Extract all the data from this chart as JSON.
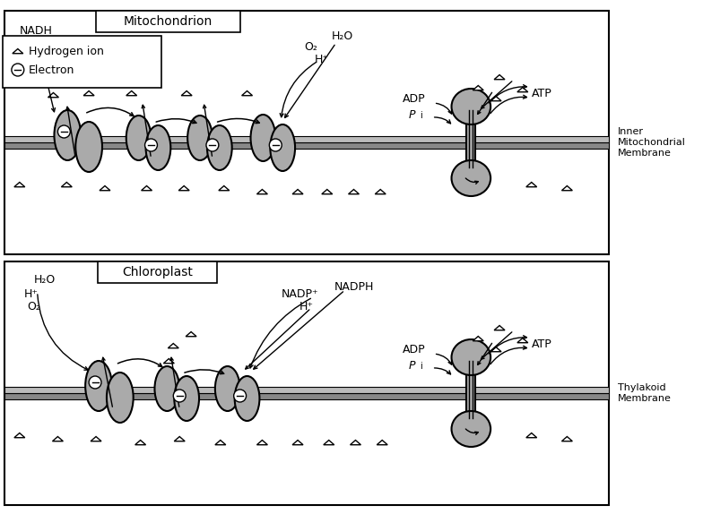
{
  "title": "",
  "bg_color": "#ffffff",
  "membrane_color": "#aaaaaa",
  "protein_fill": "#aaaaaa",
  "protein_edge": "#000000",
  "arrow_color": "#000000",
  "text_color": "#000000",
  "box_color": "#ffffff",
  "mito_label": "Mitochondrion",
  "chloro_label": "Chloroplast",
  "inner_mem_label": "Inner\nMitochondrial\nMembrane",
  "thylakoid_label": "Thylakoid\nMembrane",
  "legend_h_ion": "△ Hydrogen ion",
  "legend_electron": "⊖ Electron"
}
